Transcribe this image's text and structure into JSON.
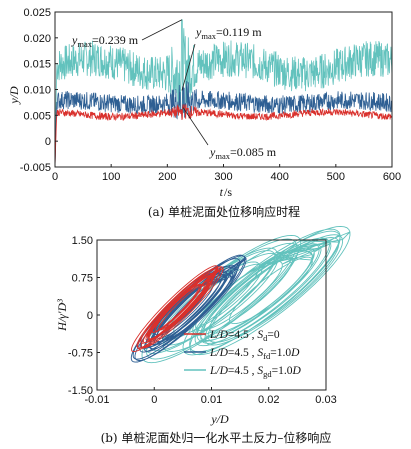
{
  "chart_data": [
    {
      "type": "line",
      "xlabel_main": "t",
      "xlabel_unit": "/s",
      "ylabel": "y/D",
      "xlim": [
        0,
        600
      ],
      "ylim": [
        -0.005,
        0.025
      ],
      "xticks": [
        "0",
        "100",
        "200",
        "300",
        "400",
        "500",
        "600"
      ],
      "yticks": [
        "-0.005",
        "0",
        "0.005",
        "0.010",
        "0.015",
        "0.020",
        "0.025"
      ],
      "series": [
        {
          "color": "#62c2bd",
          "mean": 0.0145,
          "amp": 0.0035,
          "peak_t": 226,
          "peak_y": 0.0235
        },
        {
          "color": "#2e5f93",
          "mean": 0.0075,
          "amp": 0.0018,
          "peak_t": 228,
          "peak_y": 0.0105
        },
        {
          "color": "#d9302c",
          "mean": 0.0052,
          "amp": 0.0007,
          "peak_t": 230,
          "peak_y": 0.0065
        }
      ],
      "annotations": [
        {
          "label": "y",
          "sub": "max",
          "value": "=0.239 m",
          "color": "#62c2bd"
        },
        {
          "label": "y",
          "sub": "max",
          "value": "=0.119 m",
          "color": "#2e5f93"
        },
        {
          "label": "y",
          "sub": "max",
          "value": "=0.085 m",
          "color": "#d9302c"
        }
      ],
      "caption": "(a) 单桩泥面处位移响应时程"
    },
    {
      "type": "line",
      "xlabel": "y/D",
      "ylabel": "H/γ′D³",
      "xlim": [
        -0.01,
        0.03
      ],
      "ylim": [
        -1.5,
        1.5
      ],
      "xticks": [
        "-0.01",
        "0",
        "0.01",
        "0.02",
        "0.03"
      ],
      "yticks": [
        "1.50",
        "0.75",
        "0",
        "-0.75",
        "-1.50"
      ],
      "legend_position": "bottom-right",
      "series": [
        {
          "name": "L/D=4.5 , Sd=0",
          "color": "#d9302c"
        },
        {
          "name": "L/D=4.5 , Sfd=1.0D",
          "color": "#2e5f93"
        },
        {
          "name": "L/D=4.5 , Sgd=1.0D",
          "color": "#62c2bd"
        }
      ],
      "legend": [
        {
          "pre": "L/D",
          "mid": "=4.5 , ",
          "s": "S",
          "sub": "d",
          "post": "=0"
        },
        {
          "pre": "L/D",
          "mid": "=4.5 , ",
          "s": "S",
          "sub": "fd",
          "post": "=1.0",
          "d": "D"
        },
        {
          "pre": "L/D",
          "mid": "=4.5 , ",
          "s": "S",
          "sub": "gd",
          "post": "=1.0",
          "d": "D"
        }
      ],
      "caption": "(b) 单桩泥面处归一化水平土反力–位移响应"
    }
  ]
}
